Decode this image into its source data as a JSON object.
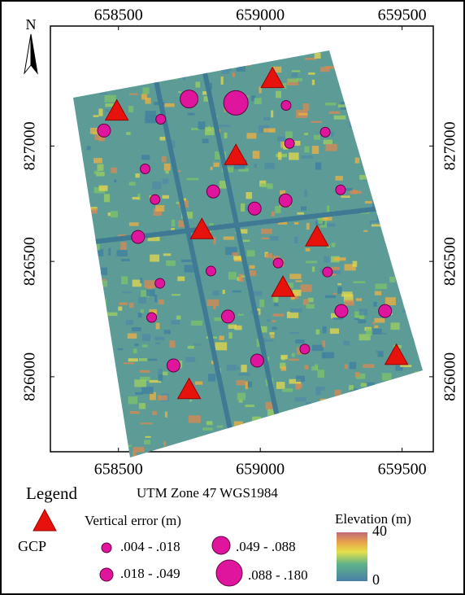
{
  "north": "N",
  "x_axis": {
    "lim": [
      658260,
      659610
    ],
    "ticks": [
      658500,
      659000,
      659500
    ]
  },
  "y_axis": {
    "lim": [
      825675,
      827520
    ],
    "ticks": [
      827000,
      826500,
      826000
    ]
  },
  "gcp": [
    {
      "x": 658494,
      "y": 827151
    },
    {
      "x": 659043,
      "y": 827292
    },
    {
      "x": 658914,
      "y": 826958
    },
    {
      "x": 658794,
      "y": 826637
    },
    {
      "x": 659200,
      "y": 826606
    },
    {
      "x": 659080,
      "y": 826387
    },
    {
      "x": 659480,
      "y": 826092
    },
    {
      "x": 658749,
      "y": 825944
    }
  ],
  "check_points": [
    {
      "x": 658749,
      "y": 827204,
      "class": 2
    },
    {
      "x": 658914,
      "y": 827187,
      "class": 3
    },
    {
      "x": 659091,
      "y": 827176,
      "class": 0
    },
    {
      "x": 658449,
      "y": 827067,
      "class": 1
    },
    {
      "x": 658649,
      "y": 827116,
      "class": 0
    },
    {
      "x": 659229,
      "y": 827060,
      "class": 0
    },
    {
      "x": 659103,
      "y": 827011,
      "class": 0
    },
    {
      "x": 658594,
      "y": 826901,
      "class": 0
    },
    {
      "x": 658834,
      "y": 826803,
      "class": 1
    },
    {
      "x": 658629,
      "y": 826768,
      "class": 0
    },
    {
      "x": 658980,
      "y": 826729,
      "class": 1
    },
    {
      "x": 659089,
      "y": 826764,
      "class": 1
    },
    {
      "x": 659283,
      "y": 826810,
      "class": 0
    },
    {
      "x": 658569,
      "y": 826606,
      "class": 1
    },
    {
      "x": 659063,
      "y": 826493,
      "class": 0
    },
    {
      "x": 658826,
      "y": 826458,
      "class": 0
    },
    {
      "x": 659237,
      "y": 826454,
      "class": 0
    },
    {
      "x": 658646,
      "y": 826405,
      "class": 0
    },
    {
      "x": 658617,
      "y": 826257,
      "class": 0
    },
    {
      "x": 658886,
      "y": 826261,
      "class": 1
    },
    {
      "x": 659286,
      "y": 826285,
      "class": 1
    },
    {
      "x": 659440,
      "y": 826285,
      "class": 1
    },
    {
      "x": 658989,
      "y": 826070,
      "class": 1
    },
    {
      "x": 659157,
      "y": 826120,
      "class": 0
    },
    {
      "x": 658694,
      "y": 826049,
      "class": 1
    }
  ],
  "legend": {
    "title": "Legend",
    "projection": "UTM Zone 47 WGS1984",
    "gcp_label": "GCP",
    "error_title": "Vertical error (m)",
    "error_classes": [
      ".004 - .018",
      ".018 - .049",
      ".049 - .088",
      ".088 - .180"
    ],
    "elevation_title": "Elevation (m)",
    "elevation_ticks": [
      40,
      0
    ]
  }
}
